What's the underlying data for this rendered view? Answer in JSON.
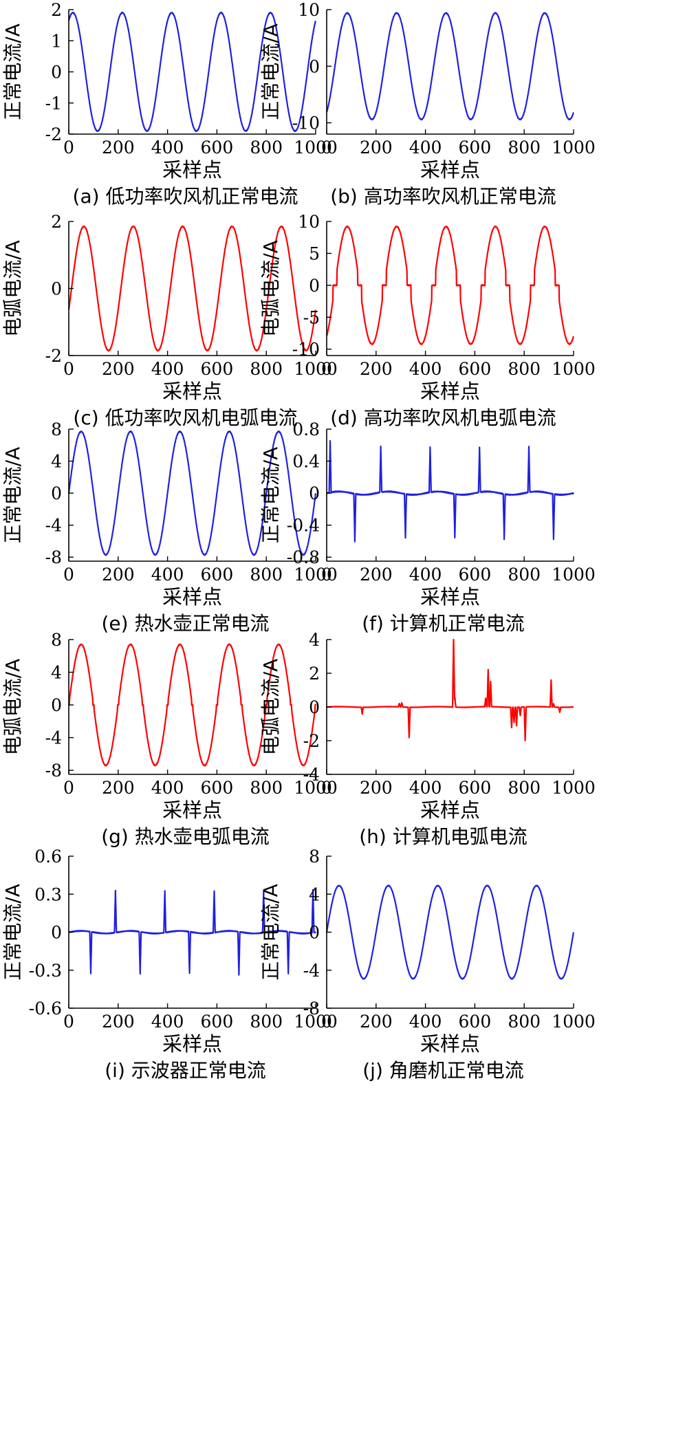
{
  "chart_data": [
    {
      "id": "a",
      "type": "line",
      "caption": "(a) 低功率吹风机正常电流",
      "xlabel": "采样点",
      "ylabel": "正常电流/A",
      "xlim": [
        0,
        1000
      ],
      "ylim": [
        -2,
        2
      ],
      "xticks": [
        0,
        200,
        400,
        600,
        800,
        1000
      ],
      "yticks": [
        -2,
        -1,
        0,
        1,
        2
      ],
      "color": "#2020e0",
      "waveform": {
        "kind": "sine",
        "amplitude": 1.9,
        "period": 200,
        "phase_deg": 60
      }
    },
    {
      "id": "b",
      "type": "line",
      "caption": "(b) 高功率吹风机正常电流",
      "xlabel": "采样点",
      "ylabel": "正常电流/A",
      "xlim": [
        0,
        1000
      ],
      "ylim": [
        -12,
        10
      ],
      "xticks": [
        0,
        200,
        400,
        600,
        800,
        1000
      ],
      "yticks": [
        -10,
        0,
        10
      ],
      "color": "#2020e0",
      "waveform": {
        "kind": "sine",
        "amplitude": 9.4,
        "period": 200,
        "phase_deg": -60
      }
    },
    {
      "id": "c",
      "type": "line",
      "caption": "(c) 低功率吹风机电弧电流",
      "xlabel": "采样点",
      "ylabel": "电弧电流/A",
      "xlim": [
        0,
        1000
      ],
      "ylim": [
        -2,
        2
      ],
      "xticks": [
        0,
        200,
        400,
        600,
        800,
        1000
      ],
      "yticks": [
        -2,
        0,
        2
      ],
      "color": "#ff0000",
      "waveform": {
        "kind": "sine",
        "amplitude": 1.85,
        "period": 200,
        "phase_deg": -20
      }
    },
    {
      "id": "d",
      "type": "line",
      "caption": "(d) 高功率吹风机电弧电流",
      "xlabel": "采样点",
      "ylabel": "电弧电流/A",
      "xlim": [
        0,
        1000
      ],
      "ylim": [
        -11,
        10
      ],
      "xticks": [
        0,
        200,
        400,
        600,
        800,
        1000
      ],
      "yticks": [
        -10,
        -5,
        0,
        5,
        10
      ],
      "color": "#ff0000",
      "waveform": {
        "kind": "sine",
        "amplitude": 9.2,
        "period": 200,
        "phase_deg": -60,
        "flat_zero_band": 0.25
      }
    },
    {
      "id": "e",
      "type": "line",
      "caption": "(e) 热水壶正常电流",
      "xlabel": "采样点",
      "ylabel": "正常电流/A",
      "xlim": [
        0,
        1000
      ],
      "ylim": [
        -8.5,
        8
      ],
      "xticks": [
        0,
        200,
        400,
        600,
        800,
        1000
      ],
      "yticks": [
        -8,
        -4,
        0,
        4,
        8
      ],
      "color": "#2020e0",
      "waveform": {
        "kind": "sine",
        "amplitude": 7.7,
        "period": 200,
        "phase_deg": 0
      }
    },
    {
      "id": "f",
      "type": "line",
      "caption": "(f) 计算机正常电流",
      "xlabel": "采样点",
      "ylabel": "正常电流/A",
      "xlim": [
        0,
        1000
      ],
      "ylim": [
        -0.85,
        0.8
      ],
      "xticks": [
        0,
        200,
        400,
        600,
        800,
        1000
      ],
      "yticks": [
        -0.8,
        -0.4,
        0,
        0.4,
        0.8
      ],
      "color": "#2020e0",
      "waveform": {
        "kind": "pulses",
        "base_amplitude": 0.02,
        "base_period": 200,
        "pulses": [
          [
            10,
            0.65
          ],
          [
            110,
            -0.6
          ],
          [
            215,
            0.57
          ],
          [
            315,
            -0.55
          ],
          [
            415,
            0.57
          ],
          [
            515,
            -0.55
          ],
          [
            615,
            0.56
          ],
          [
            715,
            -0.56
          ],
          [
            815,
            0.57
          ],
          [
            915,
            -0.57
          ]
        ]
      }
    },
    {
      "id": "g",
      "type": "line",
      "caption": "(g) 热水壶电弧电流",
      "xlabel": "采样点",
      "ylabel": "电弧电流/A",
      "xlim": [
        0,
        1000
      ],
      "ylim": [
        -8.5,
        8
      ],
      "xticks": [
        0,
        200,
        400,
        600,
        800,
        1000
      ],
      "yticks": [
        -8,
        -4,
        0,
        4,
        8
      ],
      "color": "#ff0000",
      "waveform": {
        "kind": "sine",
        "amplitude": 7.4,
        "period": 200,
        "phase_deg": 0,
        "flat_zero_band": 0.08
      }
    },
    {
      "id": "h",
      "type": "line",
      "caption": "(h) 计算机电弧电流",
      "xlabel": "采样点",
      "ylabel": "电弧电流/A",
      "xlim": [
        0,
        1000
      ],
      "ylim": [
        -4,
        4
      ],
      "xticks": [
        0,
        200,
        400,
        600,
        800,
        1000
      ],
      "yticks": [
        -4,
        -2,
        0,
        2,
        4
      ],
      "color": "#ff0000",
      "waveform": {
        "kind": "pulses",
        "base_amplitude": 0.02,
        "base_period": 200,
        "pulses": [
          [
            140,
            -0.4
          ],
          [
            290,
            0.2
          ],
          [
            300,
            0.25
          ],
          [
            330,
            -1.8
          ],
          [
            510,
            4.2
          ],
          [
            515,
            0.6
          ],
          [
            640,
            0.5
          ],
          [
            650,
            2.2
          ],
          [
            660,
            1.5
          ],
          [
            745,
            -1.2
          ],
          [
            755,
            -0.9
          ],
          [
            765,
            -1.1
          ],
          [
            780,
            -0.5
          ],
          [
            800,
            -2.0
          ],
          [
            905,
            1.6
          ],
          [
            915,
            0.2
          ],
          [
            940,
            -0.3
          ]
        ]
      }
    },
    {
      "id": "i",
      "type": "line",
      "caption": "(i) 示波器正常电流",
      "xlabel": "采样点",
      "ylabel": "正常电流/A",
      "xlim": [
        0,
        1000
      ],
      "ylim": [
        -0.6,
        0.6
      ],
      "xticks": [
        0,
        200,
        400,
        600,
        800,
        1000
      ],
      "yticks": [
        -0.6,
        -0.3,
        0,
        0.3,
        0.6
      ],
      "color": "#2020e0",
      "waveform": {
        "kind": "pulses",
        "base_amplitude": 0.01,
        "base_period": 200,
        "pulses": [
          [
            85,
            -0.33
          ],
          [
            185,
            0.33
          ],
          [
            285,
            -0.33
          ],
          [
            385,
            0.33
          ],
          [
            485,
            -0.33
          ],
          [
            585,
            0.33
          ],
          [
            685,
            -0.34
          ],
          [
            785,
            0.33
          ],
          [
            885,
            -0.33
          ],
          [
            985,
            0.34
          ]
        ]
      }
    },
    {
      "id": "j",
      "type": "line",
      "caption": "(j) 角磨机正常电流",
      "xlabel": "采样点",
      "ylabel": "正常电流/A",
      "xlim": [
        0,
        1000
      ],
      "ylim": [
        -8,
        8
      ],
      "xticks": [
        0,
        200,
        400,
        600,
        800,
        1000
      ],
      "yticks": [
        -8,
        -4,
        0,
        4,
        8
      ],
      "color": "#2020e0",
      "waveform": {
        "kind": "sine",
        "amplitude": 4.9,
        "period": 200,
        "phase_deg": 0
      }
    }
  ]
}
